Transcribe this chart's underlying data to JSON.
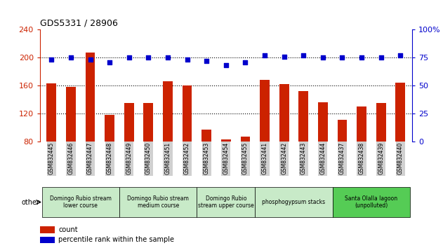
{
  "title": "GDS5331 / 28906",
  "samples": [
    "GSM832445",
    "GSM832446",
    "GSM832447",
    "GSM832448",
    "GSM832449",
    "GSM832450",
    "GSM832451",
    "GSM832452",
    "GSM832453",
    "GSM832454",
    "GSM832455",
    "GSM832441",
    "GSM832442",
    "GSM832443",
    "GSM832444",
    "GSM832437",
    "GSM832438",
    "GSM832439",
    "GSM832440"
  ],
  "counts": [
    163,
    158,
    207,
    118,
    135,
    135,
    166,
    160,
    97,
    83,
    87,
    168,
    162,
    152,
    136,
    111,
    130,
    135,
    164
  ],
  "percentiles": [
    73,
    75,
    73,
    71,
    75,
    75,
    75,
    73,
    72,
    68,
    71,
    77,
    76,
    77,
    75,
    75,
    75,
    75,
    77
  ],
  "bar_color": "#cc2200",
  "dot_color": "#0000cc",
  "ylim_left": [
    80,
    240
  ],
  "ylim_right": [
    0,
    100
  ],
  "yticks_left": [
    80,
    120,
    160,
    200,
    240
  ],
  "yticks_right": [
    0,
    25,
    50,
    75,
    100
  ],
  "groups": [
    {
      "label": "Domingo Rubio stream\nlower course",
      "start": 0,
      "end": 3,
      "color": "#c8eac8"
    },
    {
      "label": "Domingo Rubio stream\nmedium course",
      "start": 4,
      "end": 7,
      "color": "#c8eac8"
    },
    {
      "label": "Domingo Rubio\nstream upper course",
      "start": 8,
      "end": 10,
      "color": "#c8eac8"
    },
    {
      "label": "phosphogypsum stacks",
      "start": 11,
      "end": 14,
      "color": "#c8eac8"
    },
    {
      "label": "Santa Olalla lagoon\n(unpolluted)",
      "start": 15,
      "end": 18,
      "color": "#55cc55"
    }
  ],
  "other_label": "other",
  "legend_count_label": "count",
  "legend_pct_label": "percentile rank within the sample"
}
